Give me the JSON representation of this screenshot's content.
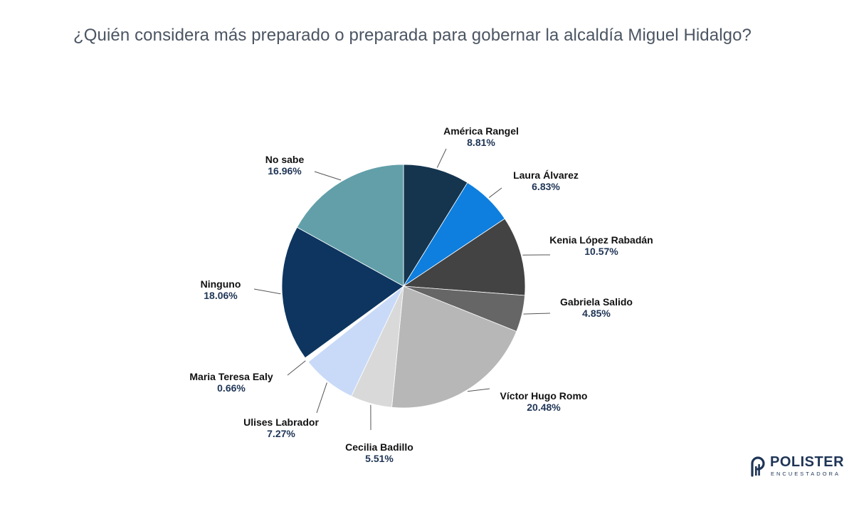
{
  "title": "¿Quién considera más preparado o preparada para gobernar la alcaldía Miguel Hidalgo?",
  "logo": {
    "name": "POLISTER",
    "subtitle": "ENCUESTADORA",
    "icon": "polister-logo-icon",
    "color": "#1f3556"
  },
  "chart_data": {
    "type": "pie",
    "title": "¿Quién considera más preparado o preparada para gobernar la alcaldía Miguel Hidalgo?",
    "slices": [
      {
        "label": "América Rangel",
        "value": 8.81,
        "display": "8.81%",
        "color": "#15354f"
      },
      {
        "label": "Laura Álvarez",
        "value": 6.83,
        "display": "6.83%",
        "color": "#0e7fde"
      },
      {
        "label": "Kenia López Rabadán",
        "value": 10.57,
        "display": "10.57%",
        "color": "#434343"
      },
      {
        "label": "Gabriela Salido",
        "value": 4.85,
        "display": "4.85%",
        "color": "#666666"
      },
      {
        "label": "Víctor Hugo Romo",
        "value": 20.48,
        "display": "20.48%",
        "color": "#b7b7b7"
      },
      {
        "label": "Cecilia Badillo",
        "value": 5.51,
        "display": "5.51%",
        "color": "#d9d9d9"
      },
      {
        "label": "Ulises Labrador",
        "value": 7.27,
        "display": "7.27%",
        "color": "#c9daf8"
      },
      {
        "label": "Maria Teresa Ealy",
        "value": 0.66,
        "display": "0.66%",
        "color": "#ffffff"
      },
      {
        "label": "Ninguno",
        "value": 18.06,
        "display": "18.06%",
        "color": "#0d355f"
      },
      {
        "label": "No sabe",
        "value": 16.96,
        "display": "16.96%",
        "color": "#629fa9"
      }
    ]
  }
}
